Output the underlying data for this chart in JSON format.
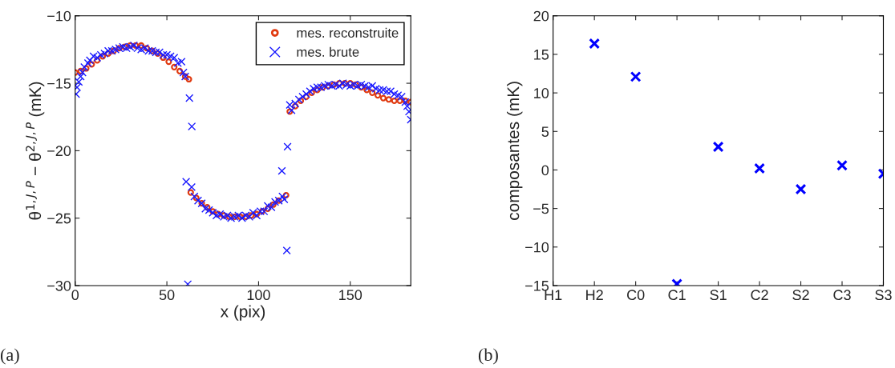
{
  "chart_data": [
    {
      "type": "scatter",
      "xlabel": "x (pix)",
      "ylabel": "θ$^{1,J,P}$ − θ$^{2,J,P}$ (mK)",
      "annotations": [
        "(a)"
      ],
      "xlim": [
        0,
        183
      ],
      "xticks": [
        0,
        50,
        100,
        150
      ],
      "ylim": [
        -30,
        -10
      ],
      "yticks": [
        -30,
        -25,
        -20,
        -15,
        -10
      ],
      "grid": false,
      "legend": "top right",
      "series": [
        {
          "name": "mes. reconstruite",
          "color": "#e03a10",
          "marker": "circle",
          "x": [
            0,
            3,
            6,
            9,
            12,
            15,
            18,
            21,
            24,
            27,
            30,
            33,
            36,
            39,
            42,
            45,
            48,
            51,
            54,
            57,
            60,
            62,
            63,
            66,
            69,
            72,
            75,
            78,
            81,
            84,
            87,
            90,
            93,
            96,
            99,
            102,
            105,
            108,
            111,
            115,
            117,
            120,
            123,
            126,
            129,
            132,
            135,
            138,
            141,
            144,
            147,
            150,
            153,
            156,
            159,
            162,
            165,
            168,
            171,
            174,
            177,
            180,
            183
          ],
          "values": [
            -14.2,
            -14.1,
            -13.9,
            -13.6,
            -13.3,
            -13.0,
            -12.8,
            -12.6,
            -12.4,
            -12.3,
            -12.2,
            -12.2,
            -12.2,
            -12.4,
            -12.6,
            -12.8,
            -13.1,
            -13.4,
            -13.8,
            -14.1,
            -14.5,
            -14.7,
            -23.1,
            -23.5,
            -23.9,
            -24.2,
            -24.5,
            -24.7,
            -24.8,
            -24.9,
            -24.9,
            -24.9,
            -24.9,
            -24.8,
            -24.7,
            -24.5,
            -24.3,
            -24.0,
            -23.7,
            -23.3,
            -17.1,
            -16.7,
            -16.3,
            -16.0,
            -15.7,
            -15.5,
            -15.3,
            -15.2,
            -15.1,
            -15.0,
            -15.0,
            -15.0,
            -15.1,
            -15.3,
            -15.5,
            -15.7,
            -15.9,
            -16.1,
            -16.2,
            -16.3,
            -16.3,
            -16.3,
            -16.4
          ]
        },
        {
          "name": "mes. brute",
          "color": "#1a1aff",
          "marker": "cross",
          "x": [
            0.5,
            1,
            2,
            3,
            4,
            5,
            7,
            8,
            10,
            12,
            14,
            16,
            18,
            20,
            22,
            24,
            26,
            28,
            30,
            32,
            34,
            36,
            38,
            40,
            42,
            44,
            46,
            48,
            50,
            52,
            54,
            56,
            58,
            59,
            60,
            62.3,
            63.6,
            60.5,
            61.4,
            63.5,
            65,
            67,
            69,
            71,
            73,
            75,
            77,
            79,
            81,
            83,
            85,
            87,
            89,
            91,
            93,
            95,
            97,
            99,
            101,
            103,
            105,
            107,
            109,
            111,
            113,
            114,
            112.7,
            115.4,
            115.8,
            117,
            118,
            120,
            122,
            124,
            126,
            128,
            130,
            132,
            134,
            136,
            138,
            140,
            142,
            144,
            146,
            148,
            150,
            152,
            154,
            156,
            158,
            160,
            162,
            164,
            166,
            168,
            170,
            172,
            174,
            176,
            178,
            180,
            181,
            182,
            183
          ],
          "values": [
            -15.8,
            -15.3,
            -14.9,
            -14.5,
            -14.2,
            -13.8,
            -13.5,
            -13.3,
            -13.0,
            -13.1,
            -12.9,
            -12.8,
            -12.6,
            -12.6,
            -12.5,
            -12.4,
            -12.3,
            -12.4,
            -12.3,
            -12.2,
            -12.4,
            -12.5,
            -12.4,
            -12.6,
            -12.6,
            -12.7,
            -12.7,
            -12.9,
            -12.9,
            -13.0,
            -13.1,
            -13.5,
            -13.4,
            -14.2,
            -14.5,
            -16.1,
            -18.2,
            -22.3,
            -29.9,
            -22.7,
            -23.4,
            -23.7,
            -23.9,
            -24.3,
            -24.4,
            -24.6,
            -24.8,
            -24.7,
            -24.9,
            -24.8,
            -25.0,
            -24.9,
            -24.8,
            -25.0,
            -24.8,
            -24.9,
            -24.6,
            -24.8,
            -24.5,
            -24.5,
            -24.1,
            -24.2,
            -23.8,
            -23.7,
            -23.4,
            -23.6,
            -21.5,
            -27.4,
            -19.7,
            -16.6,
            -17.0,
            -16.5,
            -16.2,
            -16.0,
            -15.8,
            -15.6,
            -15.4,
            -15.3,
            -15.3,
            -15.2,
            -15.1,
            -15.2,
            -15.1,
            -15.2,
            -15.0,
            -15.1,
            -15.2,
            -15.1,
            -15.2,
            -15.1,
            -15.2,
            -15.3,
            -15.2,
            -15.4,
            -15.5,
            -15.5,
            -15.6,
            -15.6,
            -15.8,
            -15.9,
            -16.0,
            -16.4,
            -16.7,
            -17.1,
            -17.7
          ]
        }
      ]
    },
    {
      "type": "scatter",
      "ylabel": "composantes (mK)",
      "annotations": [
        "(b)"
      ],
      "categories": [
        "H1",
        "H2",
        "C0",
        "C1",
        "S1",
        "C2",
        "S2",
        "C3",
        "S3"
      ],
      "ylim": [
        -15,
        20
      ],
      "yticks": [
        -15,
        -10,
        -5,
        0,
        5,
        10,
        15,
        20
      ],
      "grid": false,
      "series": [
        {
          "color": "#0000ff",
          "marker": "cross",
          "values": [
            null,
            16.4,
            12.1,
            -14.8,
            3.0,
            0.2,
            -2.5,
            0.6,
            -0.5
          ]
        }
      ]
    }
  ]
}
